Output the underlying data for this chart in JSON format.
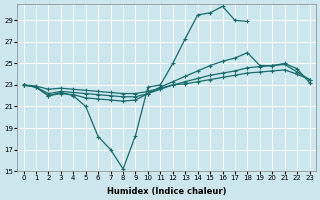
{
  "xlabel": "Humidex (Indice chaleur)",
  "ylabel": "",
  "background_color": "#cce8ee",
  "grid_color": "#ffffff",
  "line_color": "#1a6b6b",
  "xlim": [
    -0.5,
    23.5
  ],
  "ylim": [
    15,
    30.5
  ],
  "xticks": [
    0,
    1,
    2,
    3,
    4,
    5,
    6,
    7,
    8,
    9,
    10,
    11,
    12,
    13,
    14,
    15,
    16,
    17,
    18,
    19,
    20,
    21,
    22,
    23
  ],
  "yticks": [
    15,
    17,
    19,
    21,
    23,
    25,
    27,
    29
  ],
  "series": [
    {
      "x": [
        0,
        1,
        2,
        3,
        4,
        5,
        6,
        7,
        8,
        9,
        10,
        11,
        12,
        13,
        14,
        15,
        16,
        17,
        18,
        19,
        20,
        21,
        22,
        23
      ],
      "y": [
        23,
        22.8,
        22,
        22.3,
        22,
        21,
        18.2,
        17,
        15.2,
        18.3,
        22.8,
        23,
        25,
        27.3,
        29.5,
        29.7,
        30.3,
        29.0,
        28.9,
        null,
        null,
        null,
        null,
        null
      ]
    },
    {
      "x": [
        0,
        1,
        2,
        3,
        4,
        5,
        6,
        7,
        8,
        9,
        10,
        11,
        12,
        13,
        14,
        15,
        16,
        17,
        18,
        19,
        20,
        21,
        22,
        23
      ],
      "y": [
        23,
        22.8,
        22,
        22.2,
        22.1,
        21.8,
        21.7,
        21.6,
        21.5,
        21.6,
        22.2,
        22.8,
        23.3,
        23.8,
        24.3,
        24.8,
        25.2,
        25.5,
        26.0,
        24.8,
        24.8,
        25,
        24.5,
        23.2
      ]
    },
    {
      "x": [
        0,
        1,
        2,
        3,
        4,
        5,
        6,
        7,
        8,
        9,
        10,
        11,
        12,
        13,
        14,
        15,
        16,
        17,
        18,
        19,
        20,
        21,
        22,
        23
      ],
      "y": [
        23,
        22.8,
        22.2,
        22.4,
        22.3,
        22.2,
        22.1,
        22.0,
        21.9,
        21.9,
        22.2,
        22.6,
        23.0,
        23.3,
        23.6,
        23.9,
        24.1,
        24.3,
        24.6,
        24.7,
        24.8,
        24.9,
        24.2,
        23.5
      ]
    },
    {
      "x": [
        0,
        1,
        2,
        3,
        4,
        5,
        6,
        7,
        8,
        9,
        10,
        11,
        12,
        13,
        14,
        15,
        16,
        17,
        18,
        19,
        20,
        21,
        22,
        23
      ],
      "y": [
        23,
        22.9,
        22.6,
        22.7,
        22.6,
        22.5,
        22.4,
        22.3,
        22.2,
        22.2,
        22.4,
        22.7,
        23.0,
        23.1,
        23.3,
        23.5,
        23.7,
        23.9,
        24.1,
        24.2,
        24.3,
        24.4,
        24.0,
        23.5
      ]
    }
  ]
}
